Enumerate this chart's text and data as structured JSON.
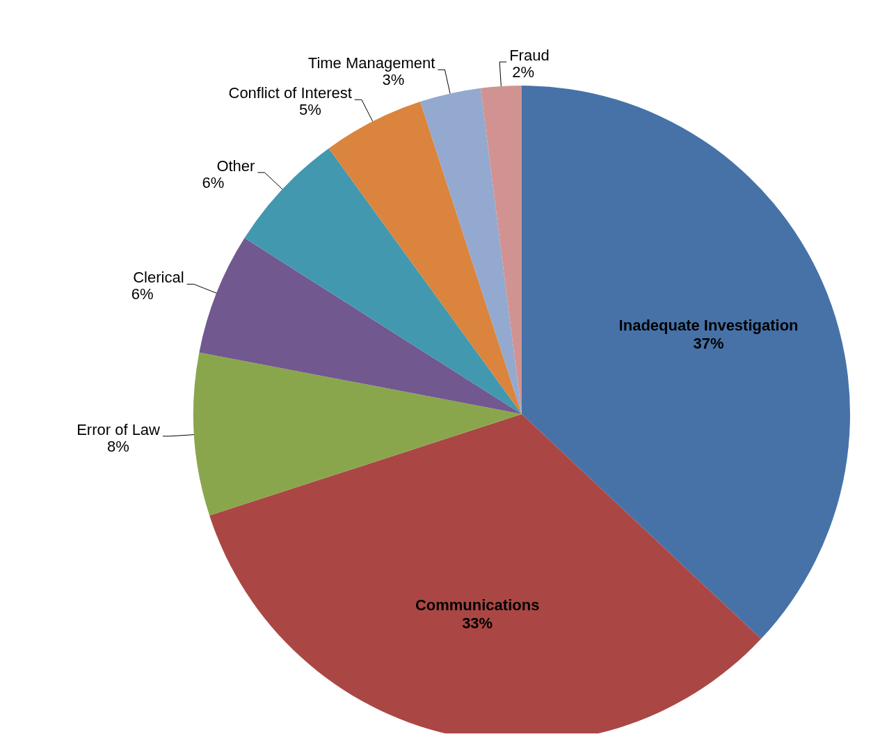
{
  "chart_data": {
    "type": "pie",
    "categories": [
      "Inadequate Investigation",
      "Communications",
      "Error of Law",
      "Clerical",
      "Other",
      "Conflict of Interest",
      "Time Management",
      "Fraud"
    ],
    "values": [
      37,
      33,
      8,
      6,
      6,
      5,
      3,
      2
    ],
    "colors": [
      "#4672a8",
      "#aa4744",
      "#8aa64d",
      "#71588f",
      "#4298af",
      "#db843d",
      "#93a9cf",
      "#d19392"
    ],
    "value_labels": [
      "37%",
      "33%",
      "8%",
      "6%",
      "6%",
      "5%",
      "3%",
      "2%"
    ]
  }
}
